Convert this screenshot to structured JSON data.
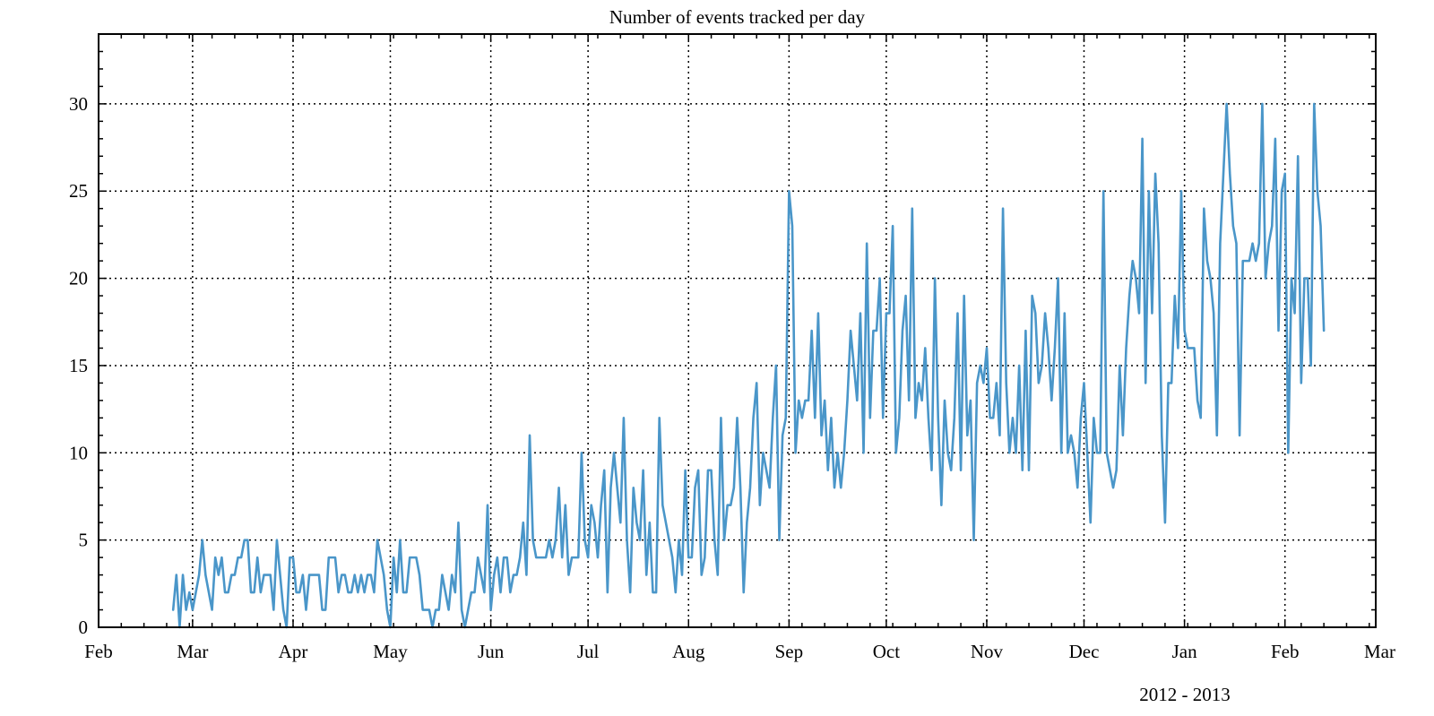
{
  "chart_data": {
    "type": "line",
    "title": "Number of events tracked per day",
    "xlabel": "2012 - 2013",
    "ylabel": "",
    "grid": true,
    "line_color": "#4a96c9",
    "x_range": [
      "2012-02-01",
      "2013-03-01"
    ],
    "ylim": [
      0,
      34
    ],
    "y_ticks": [
      0,
      5,
      10,
      15,
      20,
      25,
      30
    ],
    "x_ticks": [
      {
        "date": "2012-02-01",
        "label": "Feb"
      },
      {
        "date": "2012-03-01",
        "label": "Mar"
      },
      {
        "date": "2012-04-01",
        "label": "Apr"
      },
      {
        "date": "2012-05-01",
        "label": "May"
      },
      {
        "date": "2012-06-01",
        "label": "Jun"
      },
      {
        "date": "2012-07-01",
        "label": "Jul"
      },
      {
        "date": "2012-08-01",
        "label": "Aug"
      },
      {
        "date": "2012-09-01",
        "label": "Sep"
      },
      {
        "date": "2012-10-01",
        "label": "Oct"
      },
      {
        "date": "2012-11-01",
        "label": "Nov"
      },
      {
        "date": "2012-12-01",
        "label": "Dec"
      },
      {
        "date": "2013-01-01",
        "label": "Jan"
      },
      {
        "date": "2013-02-01",
        "label": "Feb"
      },
      {
        "date": "2013-03-01",
        "label": "Mar"
      }
    ],
    "series": [
      {
        "start_date": "2012-02-24",
        "values": [
          1,
          3,
          0,
          3,
          1,
          2,
          1,
          2,
          3,
          5,
          3,
          2,
          1,
          4,
          3,
          4,
          2,
          2,
          3,
          3,
          4,
          4,
          5,
          5,
          2,
          2,
          4,
          2,
          3,
          3,
          3,
          1,
          5,
          3,
          1,
          0,
          4,
          4,
          2,
          2,
          3,
          1,
          3,
          3,
          3,
          3,
          1,
          1,
          4,
          4,
          4,
          2,
          3,
          3,
          2,
          2,
          3,
          2,
          3,
          2,
          3,
          3,
          2,
          5,
          4,
          3,
          1,
          0,
          4,
          2,
          5,
          2,
          2,
          4,
          4,
          4,
          3,
          1,
          1,
          1,
          0,
          1,
          1,
          3,
          2,
          1,
          3,
          2,
          6,
          1,
          0,
          1,
          2,
          2,
          4,
          3,
          2,
          7,
          1,
          3,
          4,
          2,
          4,
          4,
          2,
          3,
          3,
          4,
          6,
          3,
          11,
          5,
          4,
          4,
          4,
          4,
          5,
          4,
          5,
          8,
          4,
          7,
          3,
          4,
          4,
          4,
          10,
          5,
          4,
          7,
          6,
          4,
          7,
          9,
          2,
          8,
          10,
          8,
          6,
          12,
          5,
          2,
          8,
          6,
          5,
          9,
          3,
          6,
          2,
          2,
          12,
          7,
          6,
          5,
          4,
          2,
          5,
          3,
          9,
          4,
          4,
          8,
          9,
          3,
          4,
          9,
          9,
          5,
          3,
          12,
          5,
          7,
          7,
          8,
          12,
          8,
          2,
          6,
          8,
          12,
          14,
          7,
          10,
          9,
          8,
          12,
          15,
          5,
          11,
          12,
          25,
          23,
          10,
          13,
          12,
          13,
          13,
          17,
          12,
          18,
          11,
          13,
          9,
          12,
          8,
          10,
          8,
          10,
          13,
          17,
          15,
          13,
          18,
          10,
          22,
          12,
          17,
          17,
          20,
          12,
          18,
          18,
          23,
          10,
          12,
          17,
          19,
          13,
          24,
          12,
          14,
          13,
          16,
          12,
          9,
          20,
          12,
          7,
          13,
          10,
          9,
          12,
          18,
          9,
          19,
          11,
          13,
          5,
          14,
          15,
          14,
          16,
          12,
          12,
          14,
          11,
          24,
          14,
          10,
          12,
          10,
          15,
          9,
          17,
          9,
          19,
          18,
          14,
          15,
          18,
          16,
          13,
          16,
          20,
          10,
          18,
          10,
          11,
          10,
          8,
          12,
          14,
          10,
          6,
          12,
          10,
          10,
          25,
          10,
          9,
          8,
          9,
          15,
          11,
          16,
          19,
          21,
          20,
          18,
          28,
          14,
          25,
          18,
          26,
          22,
          11,
          6,
          14,
          14,
          19,
          16,
          25,
          17,
          16,
          16,
          16,
          13,
          12,
          24,
          21,
          20,
          18,
          11,
          22,
          26,
          30,
          26,
          23,
          22,
          11,
          21,
          21,
          21,
          22,
          21,
          22,
          30,
          20,
          22,
          23,
          28,
          17,
          25,
          26,
          10,
          20,
          18,
          27,
          14,
          20,
          20,
          15,
          30,
          25,
          23,
          17
        ]
      }
    ]
  }
}
